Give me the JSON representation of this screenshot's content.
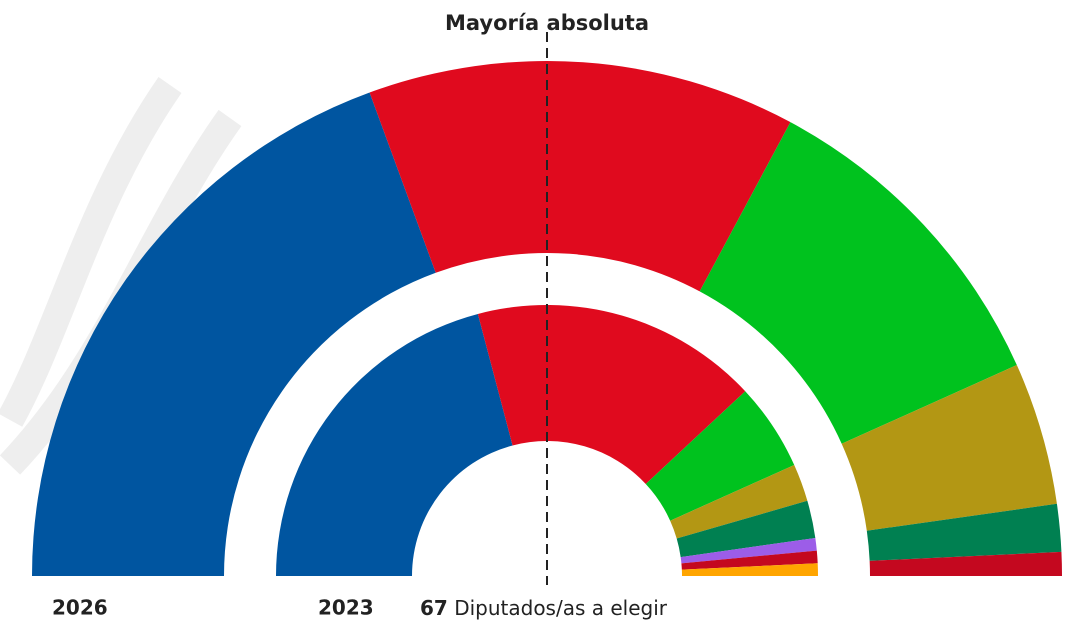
{
  "chart_data": {
    "type": "parliament",
    "title": "Mayoría absoluta",
    "total": 67,
    "total_label": "Diputados/as a elegir",
    "rings": [
      {
        "label": "2026",
        "segments": [
          {
            "color": "#0055a0",
            "value": 26
          },
          {
            "color": "#e00a1e",
            "value": 18
          },
          {
            "color": "#00c21e",
            "value": 14
          },
          {
            "color": "#b39714",
            "value": 6
          },
          {
            "color": "#008051",
            "value": 2
          },
          {
            "color": "#c4081f",
            "value": 1
          }
        ]
      },
      {
        "label": "2023",
        "segments": [
          {
            "color": "#0055a0",
            "value": 28
          },
          {
            "color": "#e00a1e",
            "value": 23
          },
          {
            "color": "#00c21e",
            "value": 7
          },
          {
            "color": "#b39714",
            "value": 3
          },
          {
            "color": "#008051",
            "value": 3
          },
          {
            "color": "#9c5de8",
            "value": 1
          },
          {
            "color": "#c4081f",
            "value": 1
          },
          {
            "color": "#ffa500",
            "value": 1
          }
        ]
      }
    ]
  }
}
